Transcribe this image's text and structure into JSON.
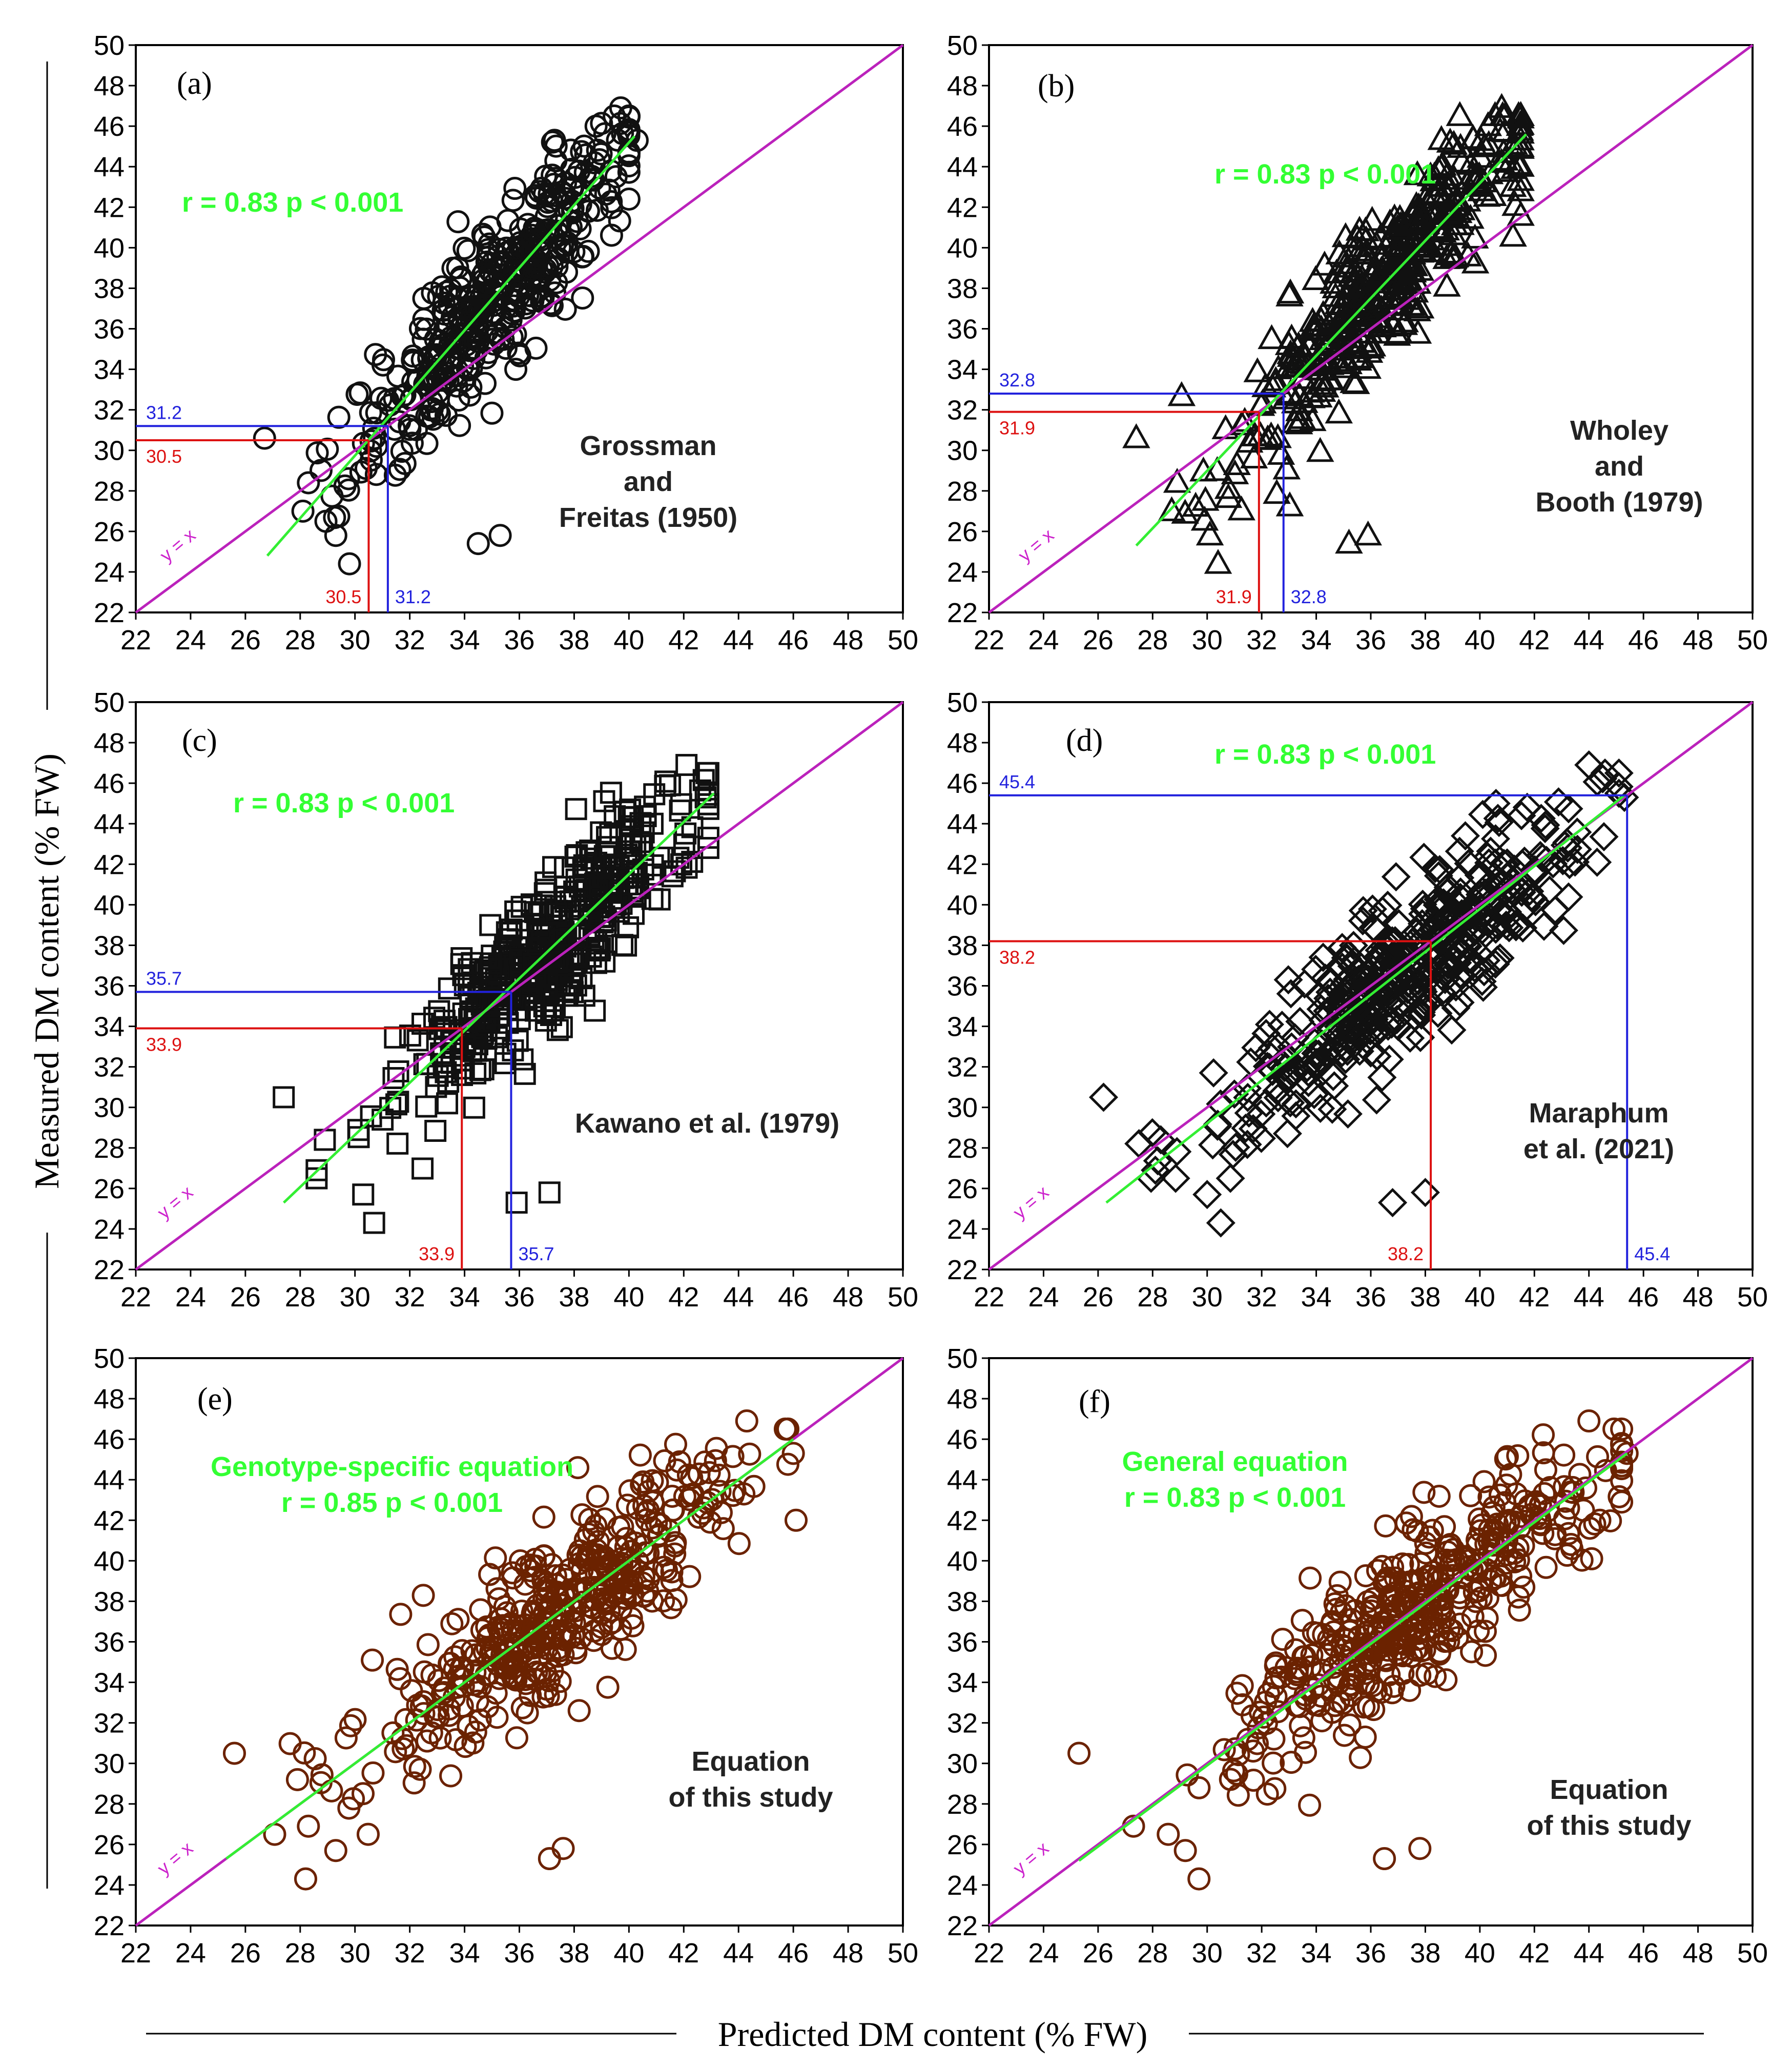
{
  "figure": {
    "y_axis_title": "Measured DM content (% FW)",
    "x_axis_title": "Predicted DM content (% FW)"
  },
  "colors": {
    "fit_line": "#33ee33",
    "identity_line": "#bb22bb",
    "ref_blue": "#2222dd",
    "ref_red": "#dd1111",
    "marker_black": "#111111",
    "marker_brown": "#6b2200"
  },
  "chart_data": [
    {
      "type": "scatter",
      "id": "a",
      "label": "(a)",
      "marker": "circle",
      "marker_color": "black",
      "xlim": [
        22,
        50
      ],
      "ylim": [
        22,
        50
      ],
      "xticks": [
        "22",
        "24",
        "26",
        "28",
        "30",
        "32",
        "34",
        "36",
        "38",
        "40",
        "42",
        "44",
        "46",
        "48",
        "50"
      ],
      "yticks": [
        "22",
        "24",
        "26",
        "28",
        "30",
        "32",
        "34",
        "36",
        "38",
        "40",
        "42",
        "44",
        "46",
        "48",
        "50"
      ],
      "identity_label": "y = x",
      "stats_lines": [
        "r = 0.83 p < 0.001"
      ],
      "annotation_lines": [
        "Grossman",
        "and",
        "Freitas (1950)"
      ],
      "fit": {
        "x": [
          26.8,
          40.2
        ],
        "y": [
          24.8,
          45.5
        ]
      },
      "center": [
        35.2,
        37.5
      ],
      "spread_x": 2.6,
      "ref_lines": [
        {
          "color": "blue",
          "value": 31.2,
          "x_label": "31.2",
          "y_label": "31.2"
        },
        {
          "color": "red",
          "value": 30.5,
          "x_label": "30.5",
          "y_label": "30.5"
        }
      ],
      "outliers": [
        [
          26.7,
          30.6
        ],
        [
          28.1,
          27.0
        ],
        [
          28.3,
          28.4
        ],
        [
          29.3,
          25.8
        ],
        [
          29.8,
          24.4
        ],
        [
          34.5,
          25.4
        ],
        [
          35.3,
          25.8
        ],
        [
          38.8,
          46.0
        ],
        [
          39.7,
          46.9
        ],
        [
          40.3,
          45.3
        ]
      ]
    },
    {
      "type": "scatter",
      "id": "b",
      "label": "(b)",
      "marker": "triangle",
      "marker_color": "black",
      "xlim": [
        22,
        50
      ],
      "ylim": [
        22,
        50
      ],
      "xticks": [
        "22",
        "24",
        "26",
        "28",
        "30",
        "32",
        "34",
        "36",
        "38",
        "40",
        "42",
        "44",
        "46",
        "48",
        "50"
      ],
      "yticks": [
        "22",
        "24",
        "26",
        "28",
        "30",
        "32",
        "34",
        "36",
        "38",
        "40",
        "42",
        "44",
        "46",
        "48",
        "50"
      ],
      "identity_label": "y = x",
      "stats_lines": [
        "r = 0.83 p < 0.001"
      ],
      "annotation_lines": [
        "Wholey",
        "and",
        "Booth (1979)"
      ],
      "fit": {
        "x": [
          27.4,
          41.7
        ],
        "y": [
          25.3,
          45.6
        ]
      },
      "center": [
        36.3,
        37.5
      ],
      "spread_x": 2.6,
      "ref_lines": [
        {
          "color": "blue",
          "value": 32.8,
          "x_label": "32.8",
          "y_label": "32.8"
        },
        {
          "color": "red",
          "value": 31.9,
          "x_label": "31.9",
          "y_label": "31.9"
        }
      ],
      "outliers": [
        [
          27.4,
          30.6
        ],
        [
          28.7,
          27.0
        ],
        [
          28.9,
          28.4
        ],
        [
          30.1,
          25.8
        ],
        [
          30.4,
          24.4
        ],
        [
          35.2,
          25.4
        ],
        [
          35.9,
          25.8
        ],
        [
          40.3,
          46.0
        ],
        [
          40.8,
          46.9
        ],
        [
          41.5,
          45.3
        ]
      ]
    },
    {
      "type": "scatter",
      "id": "c",
      "label": "(c)",
      "marker": "square",
      "marker_color": "black",
      "xlim": [
        22,
        50
      ],
      "ylim": [
        22,
        50
      ],
      "xticks": [
        "22",
        "24",
        "26",
        "28",
        "30",
        "32",
        "34",
        "36",
        "38",
        "40",
        "42",
        "44",
        "46",
        "48",
        "50"
      ],
      "yticks": [
        "22",
        "24",
        "26",
        "28",
        "30",
        "32",
        "34",
        "36",
        "38",
        "40",
        "42",
        "44",
        "46",
        "48",
        "50"
      ],
      "identity_label": "y = x",
      "stats_lines": [
        "r = 0.83 p < 0.001"
      ],
      "annotation_lines": [
        "Kawano et al. (1979)"
      ],
      "fit": {
        "x": [
          27.4,
          43.1
        ],
        "y": [
          25.3,
          45.5
        ]
      },
      "center": [
        37.0,
        37.5
      ],
      "spread_x": 2.8,
      "ref_lines": [
        {
          "color": "blue",
          "value": 35.7,
          "x_label": "35.7",
          "y_label": "35.7"
        },
        {
          "color": "red",
          "value": 33.9,
          "x_label": "33.9",
          "y_label": "33.9"
        }
      ],
      "outliers": [
        [
          27.4,
          30.5
        ],
        [
          28.6,
          26.9
        ],
        [
          28.9,
          28.4
        ],
        [
          30.3,
          25.7
        ],
        [
          30.7,
          24.3
        ],
        [
          35.9,
          25.3
        ],
        [
          37.1,
          25.8
        ],
        [
          42.1,
          46.9
        ],
        [
          42.8,
          45.3
        ],
        [
          41.5,
          45.9
        ]
      ]
    },
    {
      "type": "scatter",
      "id": "d",
      "label": "(d)",
      "marker": "diamond",
      "marker_color": "black",
      "xlim": [
        22,
        50
      ],
      "ylim": [
        22,
        50
      ],
      "xticks": [
        "22",
        "24",
        "26",
        "28",
        "30",
        "32",
        "34",
        "36",
        "38",
        "40",
        "42",
        "44",
        "46",
        "48",
        "50"
      ],
      "yticks": [
        "22",
        "24",
        "26",
        "28",
        "30",
        "32",
        "34",
        "36",
        "38",
        "40",
        "42",
        "44",
        "46",
        "48",
        "50"
      ],
      "identity_label": "y = x",
      "stats_lines": [
        "r = 0.83 p < 0.001"
      ],
      "annotation_lines": [
        "Maraphum",
        "et al. (2021)"
      ],
      "fit": {
        "x": [
          26.3,
          45.3
        ],
        "y": [
          25.3,
          45.4
        ]
      },
      "center": [
        37.5,
        37.5
      ],
      "spread_x": 3.3,
      "ref_lines": [
        {
          "color": "blue",
          "value": 45.4,
          "x_label": "45.4",
          "y_label": "45.4"
        },
        {
          "color": "red",
          "value": 38.2,
          "x_label": "38.2",
          "y_label": "38.2"
        }
      ],
      "outliers": [
        [
          26.2,
          30.5
        ],
        [
          28.1,
          26.9
        ],
        [
          28.3,
          28.4
        ],
        [
          30.0,
          25.7
        ],
        [
          30.5,
          24.3
        ],
        [
          36.8,
          25.3
        ],
        [
          38.0,
          25.8
        ],
        [
          44.0,
          46.9
        ],
        [
          45.3,
          45.3
        ],
        [
          44.3,
          42.1
        ]
      ]
    },
    {
      "type": "scatter",
      "id": "e",
      "label": "(e)",
      "marker": "circle",
      "marker_color": "brown",
      "xlim": [
        22,
        50
      ],
      "ylim": [
        22,
        50
      ],
      "xticks": [
        "22",
        "24",
        "26",
        "28",
        "30",
        "32",
        "34",
        "36",
        "38",
        "40",
        "42",
        "44",
        "46",
        "48",
        "50"
      ],
      "yticks": [
        "22",
        "24",
        "26",
        "28",
        "30",
        "32",
        "34",
        "36",
        "38",
        "40",
        "42",
        "44",
        "46",
        "48",
        "50"
      ],
      "identity_label": "y = x",
      "stats_lines": [
        "Genotype-specific equation",
        "r = 0.85 p < 0.001"
      ],
      "annotation_lines": [
        "Equation",
        "of this study"
      ],
      "fit": {
        "x": [
          25.3,
          46.0
        ],
        "y": [
          25.3,
          46.0
        ]
      },
      "center": [
        37.5,
        37.5
      ],
      "spread_x": 3.5,
      "ref_lines": [],
      "outliers": [
        [
          25.6,
          30.5
        ],
        [
          28.3,
          26.9
        ],
        [
          28.2,
          24.3
        ],
        [
          27.9,
          29.2
        ],
        [
          29.3,
          25.7
        ],
        [
          37.1,
          25.3
        ],
        [
          37.6,
          25.8
        ],
        [
          44.3,
          46.9
        ],
        [
          46.1,
          42.0
        ],
        [
          46.0,
          45.3
        ]
      ]
    },
    {
      "type": "scatter",
      "id": "f",
      "label": "(f)",
      "marker": "circle",
      "marker_color": "brown",
      "xlim": [
        22,
        50
      ],
      "ylim": [
        22,
        50
      ],
      "xticks": [
        "22",
        "24",
        "26",
        "28",
        "30",
        "32",
        "34",
        "36",
        "38",
        "40",
        "42",
        "44",
        "46",
        "48",
        "50"
      ],
      "yticks": [
        "22",
        "24",
        "26",
        "28",
        "30",
        "32",
        "34",
        "36",
        "38",
        "40",
        "42",
        "44",
        "46",
        "48",
        "50"
      ],
      "identity_label": "y = x",
      "stats_lines": [
        "General equation",
        "r = 0.83 p < 0.001"
      ],
      "annotation_lines": [
        "Equation",
        "of this study"
      ],
      "fit": {
        "x": [
          25.3,
          45.4
        ],
        "y": [
          25.2,
          45.3
        ]
      },
      "center": [
        37.5,
        37.5
      ],
      "spread_x": 3.3,
      "ref_lines": [],
      "outliers": [
        [
          25.3,
          30.5
        ],
        [
          27.3,
          26.9
        ],
        [
          29.7,
          24.3
        ],
        [
          29.2,
          25.7
        ],
        [
          36.5,
          25.3
        ],
        [
          37.8,
          25.8
        ],
        [
          44.0,
          46.9
        ],
        [
          44.1,
          40.1
        ],
        [
          45.4,
          45.3
        ],
        [
          44.4,
          42.0
        ]
      ]
    }
  ]
}
